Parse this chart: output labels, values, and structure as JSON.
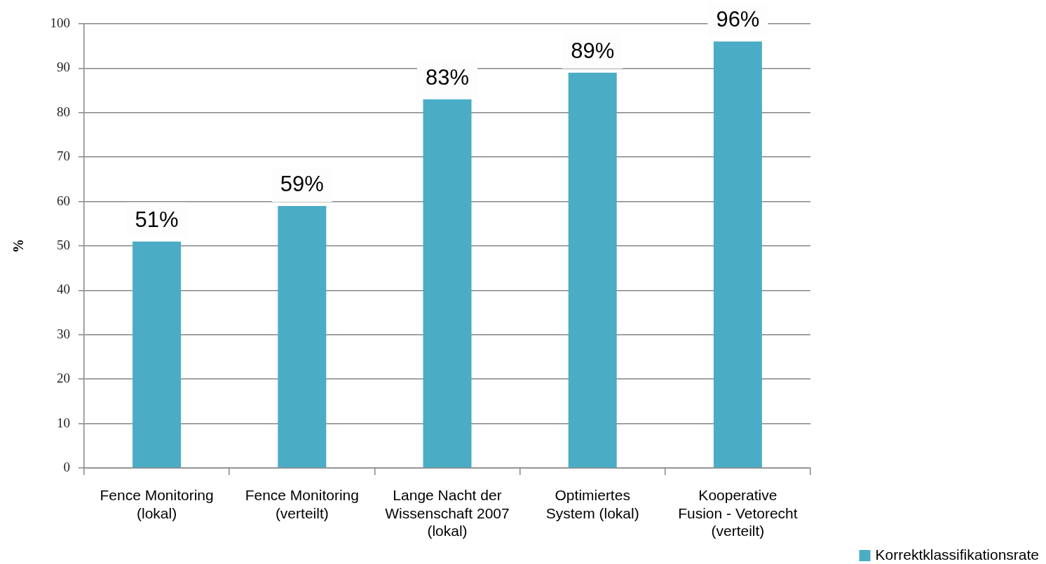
{
  "chart_data": {
    "type": "bar",
    "ylabel": "%",
    "categories": [
      "Fence Monitoring (lokal)",
      "Fence Monitoring (verteilt)",
      "Lange Nacht der Wissenschaft 2007 (lokal)",
      "Optimiertes System (lokal)",
      "Kooperative Fusion - Vetorecht (verteilt)"
    ],
    "series": [
      {
        "name": "Korrektklassifikationsrate",
        "color": "#4bacc6",
        "values": [
          51,
          59,
          83,
          89,
          96
        ],
        "value_labels": [
          "51%",
          "59%",
          "83%",
          "89%",
          "96%"
        ]
      }
    ],
    "ylim": [
      0,
      100
    ],
    "yticks": [
      0,
      10,
      20,
      30,
      40,
      50,
      60,
      70,
      80,
      90,
      100
    ],
    "grid": "y",
    "legend": "bottom right"
  }
}
